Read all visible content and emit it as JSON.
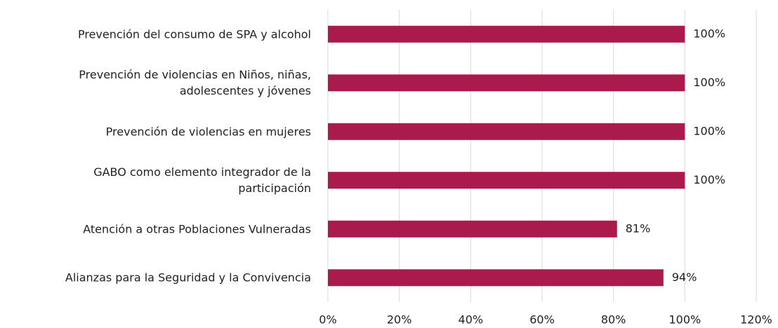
{
  "chart_data": {
    "type": "bar",
    "orientation": "horizontal",
    "categories": [
      "Prevención del consumo de SPA y alcohol",
      "Prevención de violencias en Niños, niñas,\nadolescentes y jóvenes",
      "Prevención de violencias en mujeres",
      "GABO como elemento integrador de la\nparticipación",
      "Atención a otras Poblaciones Vulneradas",
      "Alianzas para la Seguridad y la Convivencia"
    ],
    "values": [
      100,
      100,
      100,
      100,
      81,
      94
    ],
    "value_labels": [
      "100%",
      "100%",
      "100%",
      "100%",
      "81%",
      "94%"
    ],
    "color": "#ab1a4d",
    "xlim": [
      0,
      120
    ],
    "xticks": [
      {
        "value": 0,
        "label": "0%"
      },
      {
        "value": 20,
        "label": "20%"
      },
      {
        "value": 40,
        "label": "40%"
      },
      {
        "value": 60,
        "label": "60%"
      },
      {
        "value": 80,
        "label": "80%"
      },
      {
        "value": 100,
        "label": "100%"
      },
      {
        "value": 120,
        "label": "120%"
      }
    ],
    "grid": true
  }
}
